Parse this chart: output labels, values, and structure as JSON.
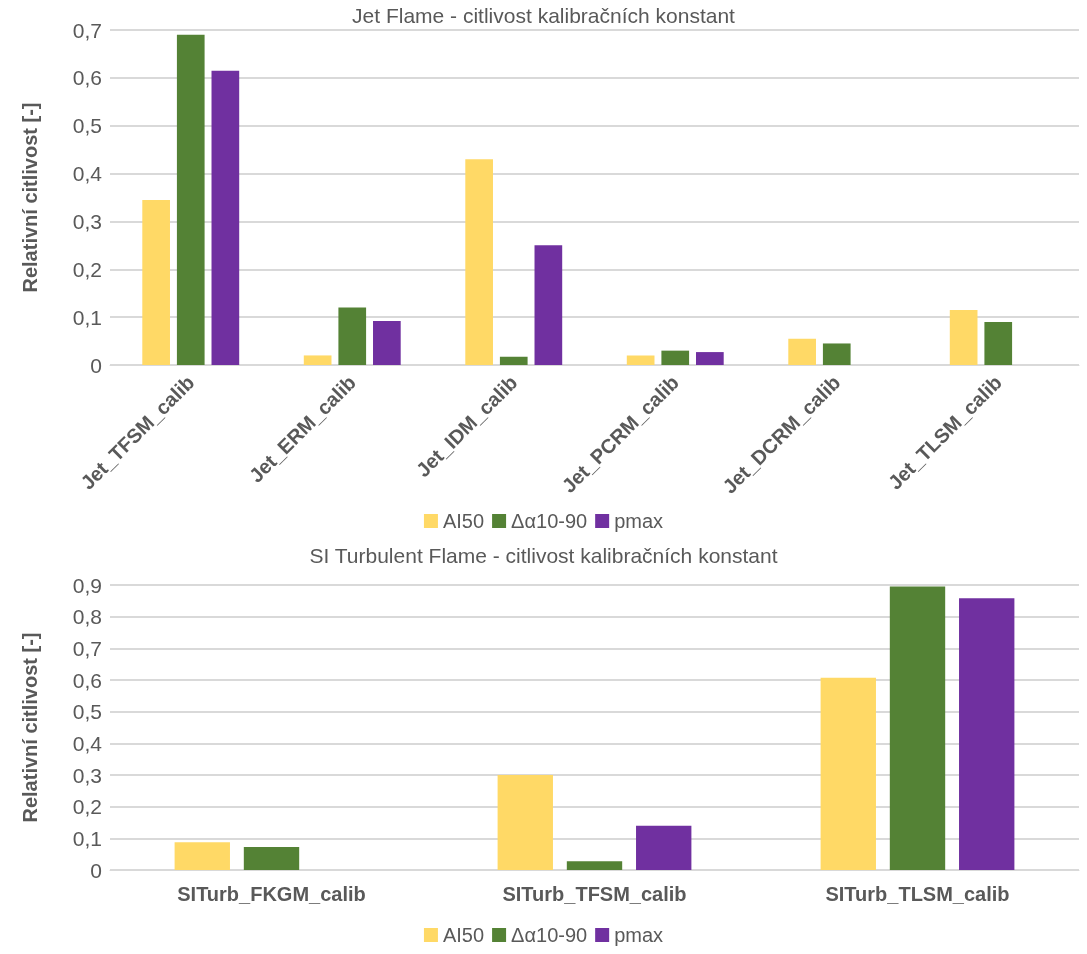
{
  "chart_data": [
    {
      "type": "bar",
      "title": "Jet Flame - citlivost kalibračních konstant",
      "ylabel": "Relativní citlivost [-]",
      "categories": [
        "Jet_TFSM_calib",
        "Jet_ERM_calib",
        "Jet_IDM_calib",
        "Jet_PCRM_calib",
        "Jet_DCRM_calib",
        "Jet_TLSM_calib"
      ],
      "series": [
        {
          "name": "AI50",
          "color": "#ffd966",
          "values": [
            0.345,
            0.02,
            0.43,
            0.02,
            0.055,
            0.115
          ]
        },
        {
          "name": "Δα10-90",
          "color": "#548235",
          "values": [
            0.69,
            0.12,
            0.017,
            0.03,
            0.045,
            0.09
          ]
        },
        {
          "name": "pmax",
          "color": "#7030a0",
          "values": [
            0.615,
            0.092,
            0.25,
            0.027,
            null,
            null
          ]
        }
      ],
      "ylim": [
        0,
        0.7
      ],
      "yticks": [
        0,
        {
          "value": 0.1,
          "label": "0,1"
        },
        {
          "value": 0.2,
          "label": "0,2"
        },
        {
          "value": 0.3,
          "label": "0,3"
        },
        {
          "value": 0.4,
          "label": "0,4"
        },
        {
          "value": 0.5,
          "label": "0,5"
        },
        {
          "value": 0.6,
          "label": "0,6"
        },
        {
          "value": 0.7,
          "label": "0,7"
        }
      ],
      "grid": "y",
      "legend": "bottom"
    },
    {
      "type": "bar",
      "title": "SI Turbulent Flame - citlivost kalibračních konstant",
      "ylabel": "Relativní citlivost [-]",
      "categories": [
        "SITurb_FKGM_calib",
        "SITurb_TFSM_calib",
        "SITurb_TLSM_calib"
      ],
      "series": [
        {
          "name": "AI50",
          "color": "#ffd966",
          "values": [
            0.088,
            0.3,
            0.607
          ]
        },
        {
          "name": "Δα10-90",
          "color": "#548235",
          "values": [
            0.073,
            0.028,
            0.895
          ]
        },
        {
          "name": "pmax",
          "color": "#7030a0",
          "values": [
            null,
            0.14,
            0.858
          ]
        }
      ],
      "ylim": [
        0,
        0.9
      ],
      "yticks": [
        0,
        {
          "value": 0.1,
          "label": "0,1"
        },
        {
          "value": 0.2,
          "label": "0,2"
        },
        {
          "value": 0.3,
          "label": "0,3"
        },
        {
          "value": 0.4,
          "label": "0,4"
        },
        {
          "value": 0.5,
          "label": "0,5"
        },
        {
          "value": 0.6,
          "label": "0,6"
        },
        {
          "value": 0.7,
          "label": "0,7"
        },
        {
          "value": 0.8,
          "label": "0,8"
        },
        {
          "value": 0.9,
          "label": "0,9"
        }
      ],
      "grid": "y",
      "legend": "bottom"
    }
  ]
}
